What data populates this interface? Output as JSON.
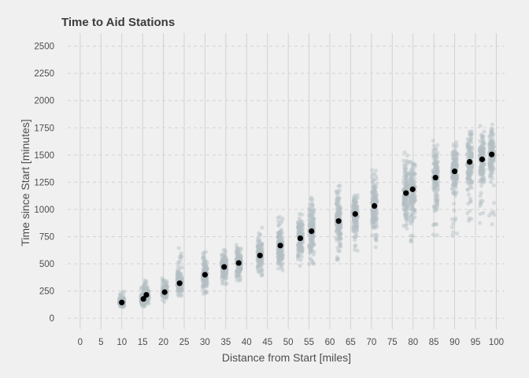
{
  "chart_data": {
    "type": "scatter",
    "title": "Time to Aid Stations",
    "xlabel": "Distance from Start [miles]",
    "ylabel": "Time since Start [minutes]",
    "xlim": [
      -3,
      102
    ],
    "ylim": [
      -100,
      2620
    ],
    "x_ticks": [
      0,
      5,
      10,
      15,
      20,
      25,
      30,
      35,
      40,
      45,
      50,
      55,
      60,
      65,
      70,
      75,
      80,
      85,
      90,
      95,
      100
    ],
    "y_ticks": [
      0,
      250,
      500,
      750,
      1000,
      1250,
      1500,
      1750,
      2000,
      2250,
      2500
    ],
    "grid": true,
    "legend": "none",
    "colors": {
      "individual_points": "#b4bfc4",
      "mean_points": "#000000",
      "grid": "#d2d2d2",
      "background": "#f0f0f0"
    },
    "stations": [
      {
        "x": 10.0,
        "min": 90,
        "max": 250,
        "mean": 145
      },
      {
        "x": 15.2,
        "min": 105,
        "max": 330,
        "mean": 178
      },
      {
        "x": 15.9,
        "min": 120,
        "max": 360,
        "mean": 215
      },
      {
        "x": 20.3,
        "min": 150,
        "max": 370,
        "mean": 240
      },
      {
        "x": 23.9,
        "min": 185,
        "max": 660,
        "mean": 322
      },
      {
        "x": 30.0,
        "min": 215,
        "max": 630,
        "mean": 400
      },
      {
        "x": 34.6,
        "min": 310,
        "max": 640,
        "mean": 472
      },
      {
        "x": 38.1,
        "min": 330,
        "max": 680,
        "mean": 508
      },
      {
        "x": 43.2,
        "min": 380,
        "max": 840,
        "mean": 577
      },
      {
        "x": 48.1,
        "min": 420,
        "max": 940,
        "mean": 668
      },
      {
        "x": 52.9,
        "min": 460,
        "max": 980,
        "mean": 735
      },
      {
        "x": 55.6,
        "min": 480,
        "max": 1110,
        "mean": 800
      },
      {
        "x": 62.1,
        "min": 530,
        "max": 1240,
        "mean": 893
      },
      {
        "x": 66.1,
        "min": 620,
        "max": 1190,
        "mean": 958
      },
      {
        "x": 70.7,
        "min": 620,
        "max": 1380,
        "mean": 1032
      },
      {
        "x": 78.3,
        "min": 680,
        "max": 1550,
        "mean": 1150
      },
      {
        "x": 79.9,
        "min": 690,
        "max": 1490,
        "mean": 1185
      },
      {
        "x": 85.4,
        "min": 740,
        "max": 1690,
        "mean": 1292
      },
      {
        "x": 90.0,
        "min": 760,
        "max": 1680,
        "mean": 1350
      },
      {
        "x": 93.6,
        "min": 800,
        "max": 1820,
        "mean": 1437
      },
      {
        "x": 96.6,
        "min": 830,
        "max": 1780,
        "mean": 1460
      },
      {
        "x": 98.9,
        "min": 830,
        "max": 1800,
        "mean": 1505
      }
    ]
  }
}
